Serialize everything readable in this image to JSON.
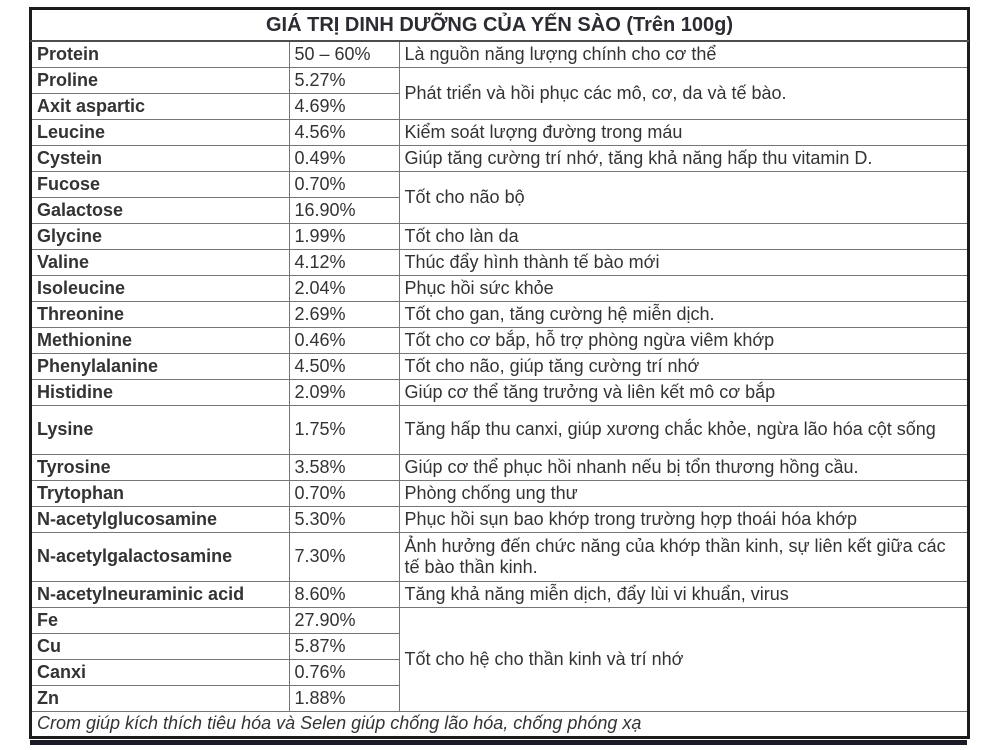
{
  "table": {
    "title": "GIÁ TRỊ DINH DƯỠNG CỦA YẾN SÀO (Trên 100g)",
    "footer": "Crom giúp kích thích tiêu hóa và Selen giúp chống lão hóa, chống phóng xạ",
    "rows": [
      {
        "name": "Protein",
        "value": "50 – 60%",
        "desc": "Là nguồn năng lượng chính cho cơ thể",
        "span": 1
      },
      {
        "name": "Proline",
        "value": "5.27%",
        "desc": "Phát triển và hồi phục các mô, cơ, da và tế bào.",
        "span": 2
      },
      {
        "name": "Axit aspartic",
        "value": "4.69%"
      },
      {
        "name": "Leucine",
        "value": "4.56%",
        "desc": "Kiểm soát lượng đường trong máu",
        "span": 1
      },
      {
        "name": "Cystein",
        "value": "0.49%",
        "desc": "Giúp tăng cường trí nhớ, tăng khả năng hấp thu vitamin D.",
        "span": 1
      },
      {
        "name": "Fucose",
        "value": "0.70%",
        "desc": "Tốt cho não bộ",
        "span": 2
      },
      {
        "name": "Galactose",
        "value": "16.90%"
      },
      {
        "name": "Glycine",
        "value": "1.99%",
        "desc": "Tốt cho làn da",
        "span": 1
      },
      {
        "name": "Valine",
        "value": "4.12%",
        "desc": "Thúc đẩy hình thành tế bào mới",
        "span": 1
      },
      {
        "name": "Isoleucine",
        "value": "2.04%",
        "desc": "Phục hồi sức khỏe",
        "span": 1
      },
      {
        "name": "Threonine",
        "value": "2.69%",
        "desc": "Tốt cho gan, tăng cường hệ miễn dịch.",
        "span": 1
      },
      {
        "name": "Methionine",
        "value": "0.46%",
        "desc": "Tốt cho cơ bắp, hỗ trợ phòng ngừa viêm khớp",
        "span": 1
      },
      {
        "name": "Phenylalanine",
        "value": "4.50%",
        "desc": "Tốt cho não, giúp tăng cường trí nhớ",
        "span": 1
      },
      {
        "name": "Histidine",
        "value": "2.09%",
        "desc": "Giúp cơ thể tăng trưởng và liên kết mô cơ bắp",
        "span": 1
      },
      {
        "name": "Lysine",
        "value": "1.75%",
        "desc": "Tăng hấp thu canxi, giúp xương chắc khỏe, ngừa lão hóa cột sống",
        "span": 1,
        "tall": true
      },
      {
        "name": "Tyrosine",
        "value": "3.58%",
        "desc": "Giúp cơ thể phục hồi nhanh nếu bị tổn thương hồng cầu.",
        "span": 1
      },
      {
        "name": "Trytophan",
        "value": "0.70%",
        "desc": "Phòng chống ung thư",
        "span": 1
      },
      {
        "name": "N-acetylglucosamine",
        "value": "5.30%",
        "desc": "Phục hồi sụn bao khớp trong trường hợp thoái hóa khớp",
        "span": 1
      },
      {
        "name": "N-acetylgalactosamine",
        "value": "7.30%",
        "desc": "Ảnh hưởng đến chức năng của khớp thần kinh, sự liên kết giữa các tế bào thần kinh.",
        "span": 1,
        "tall": true
      },
      {
        "name": "N-acetylneuraminic acid",
        "value": "8.60%",
        "desc": "Tăng khả năng miễn dịch, đẩy lùi vi khuẩn, virus",
        "span": 1
      },
      {
        "name": "Fe",
        "value": "27.90%",
        "desc": "Tốt cho hệ cho thần kinh và trí nhớ",
        "span": 4
      },
      {
        "name": "Cu",
        "value": "5.87%"
      },
      {
        "name": "Canxi",
        "value": "0.76%"
      },
      {
        "name": "Zn",
        "value": "1.88%"
      }
    ]
  },
  "colors": {
    "background": "#ffffff",
    "text": "#333333",
    "border_outer": "#1c1c1c",
    "border_inner": "#767676",
    "bottom_bar": "#1b1b26"
  }
}
